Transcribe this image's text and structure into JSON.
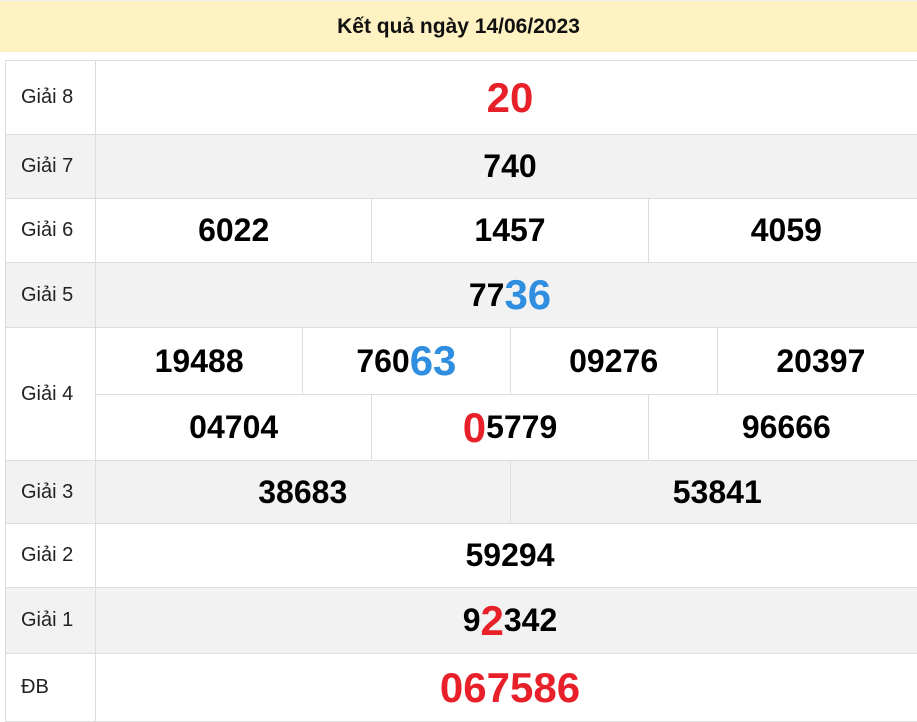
{
  "title": "Kết quả ngày 14/06/2023",
  "colors": {
    "red": "#e8202a",
    "blue": "#2f8ee0",
    "black": "#000000"
  },
  "rows": [
    {
      "label": "Giải 8",
      "big": true,
      "lines": [
        [
          [
            {
              "t": "20",
              "c": "red"
            }
          ]
        ]
      ]
    },
    {
      "label": "Giải 7",
      "lines": [
        [
          [
            {
              "t": "740",
              "c": "black"
            }
          ]
        ]
      ]
    },
    {
      "label": "Giải 6",
      "lines": [
        [
          [
            {
              "t": "6022",
              "c": "black"
            }
          ],
          [
            {
              "t": "1457",
              "c": "black"
            }
          ],
          [
            {
              "t": "4059",
              "c": "black"
            }
          ]
        ]
      ]
    },
    {
      "label": "Giải 5",
      "lines": [
        [
          [
            {
              "t": "77",
              "c": "black"
            },
            {
              "t": "36",
              "c": "blue",
              "hl": true
            }
          ]
        ]
      ]
    },
    {
      "label": "Giải 4",
      "lines": [
        [
          [
            {
              "t": "19488",
              "c": "black"
            }
          ],
          [
            {
              "t": "760",
              "c": "black"
            },
            {
              "t": "63",
              "c": "blue",
              "hl": true
            }
          ],
          [
            {
              "t": "09276",
              "c": "black"
            }
          ],
          [
            {
              "t": "20397",
              "c": "black"
            }
          ]
        ],
        [
          [
            {
              "t": "04704",
              "c": "black"
            }
          ],
          [
            {
              "t": "0",
              "c": "red",
              "hl": true
            },
            {
              "t": "5779",
              "c": "black"
            }
          ],
          [
            {
              "t": "96666",
              "c": "black"
            }
          ]
        ]
      ]
    },
    {
      "label": "Giải 3",
      "lines": [
        [
          [
            {
              "t": "38683",
              "c": "black"
            }
          ],
          [
            {
              "t": "53841",
              "c": "black"
            }
          ]
        ]
      ]
    },
    {
      "label": "Giải 2",
      "lines": [
        [
          [
            {
              "t": "59294",
              "c": "black"
            }
          ]
        ]
      ]
    },
    {
      "label": "Giải 1",
      "lines": [
        [
          [
            {
              "t": "9",
              "c": "black"
            },
            {
              "t": "2",
              "c": "red",
              "hl": true
            },
            {
              "t": "342",
              "c": "black"
            }
          ]
        ]
      ]
    },
    {
      "label": "ĐB",
      "big": true,
      "lines": [
        [
          [
            {
              "t": "067586",
              "c": "red"
            }
          ]
        ]
      ]
    }
  ]
}
